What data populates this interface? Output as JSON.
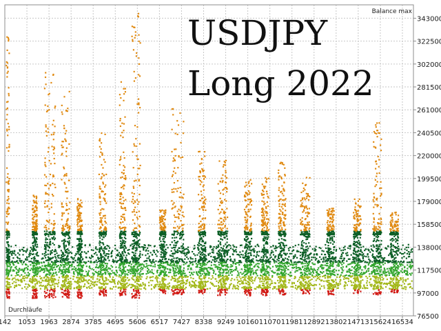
{
  "chart_data": {
    "type": "scatter",
    "title_lines": [
      "USDJPY",
      "Long 2022"
    ],
    "xlabel": "Durchläufe",
    "ylabel": "Balance max",
    "xlim": [
      142,
      17000
    ],
    "ylim": [
      76500,
      355000
    ],
    "x_ticks": [
      "142",
      "1053",
      "1963",
      "2874",
      "3785",
      "4695",
      "5606",
      "6517",
      "7427",
      "8338",
      "9249",
      "10160",
      "11070",
      "11981",
      "12892",
      "13802",
      "14713",
      "15624",
      "16534"
    ],
    "y_ticks": [
      343000,
      322500,
      302000,
      281500,
      261000,
      240500,
      220000,
      199500,
      179000,
      158500,
      138000,
      117500,
      97000,
      76500
    ],
    "grid": true,
    "colors": {
      "top": "#e08a12",
      "upper": "#0d5f26",
      "middle": "#33a62e",
      "lower": "#a3b81a",
      "bottom": "#d11a14",
      "grid": "#c6c6c6",
      "axis": "#8c8c8c"
    },
    "bands": [
      {
        "name": "top",
        "min": 153000,
        "max": 355000
      },
      {
        "name": "upper",
        "min": 125000,
        "max": 153000
      },
      {
        "name": "middle",
        "min": 113000,
        "max": 125000
      },
      {
        "name": "lower",
        "min": 101000,
        "max": 113000
      },
      {
        "name": "bottom",
        "min": 93000,
        "max": 101000
      }
    ],
    "clusters": [
      {
        "x": [
          142,
          300
        ],
        "y_range": [
          93000,
          330000
        ]
      },
      {
        "x": [
          1250,
          1450
        ],
        "y_range": [
          93000,
          185000
        ]
      },
      {
        "x": [
          1750,
          2200
        ],
        "y_range": [
          93000,
          295000
        ]
      },
      {
        "x": [
          2450,
          2800
        ],
        "y_range": [
          93000,
          282000
        ]
      },
      {
        "x": [
          3100,
          3300
        ],
        "y_range": [
          93000,
          182000
        ]
      },
      {
        "x": [
          4000,
          4300
        ],
        "y_range": [
          95000,
          242000
        ]
      },
      {
        "x": [
          4850,
          5100
        ],
        "y_range": [
          95000,
          290000
        ]
      },
      {
        "x": [
          5350,
          5700
        ],
        "y_range": [
          93000,
          350000
        ]
      },
      {
        "x": [
          6500,
          6750
        ],
        "y_range": [
          97000,
          172000
        ]
      },
      {
        "x": [
          7000,
          7500
        ],
        "y_range": [
          96000,
          265000
        ]
      },
      {
        "x": [
          8100,
          8400
        ],
        "y_range": [
          97000,
          228000
        ]
      },
      {
        "x": [
          8900,
          9300
        ],
        "y_range": [
          95000,
          222000
        ]
      },
      {
        "x": [
          10000,
          10300
        ],
        "y_range": [
          95000,
          200000
        ]
      },
      {
        "x": [
          10700,
          11000
        ],
        "y_range": [
          95000,
          202000
        ]
      },
      {
        "x": [
          11400,
          11700
        ],
        "y_range": [
          96000,
          215000
        ]
      },
      {
        "x": [
          12300,
          12700
        ],
        "y_range": [
          97000,
          202000
        ]
      },
      {
        "x": [
          13400,
          13700
        ],
        "y_range": [
          96000,
          175000
        ]
      },
      {
        "x": [
          14500,
          14800
        ],
        "y_range": [
          97000,
          182000
        ]
      },
      {
        "x": [
          15300,
          15650
        ],
        "y_range": [
          96000,
          250000
        ]
      },
      {
        "x": [
          16000,
          16350
        ],
        "y_range": [
          98000,
          170000
        ]
      }
    ]
  }
}
